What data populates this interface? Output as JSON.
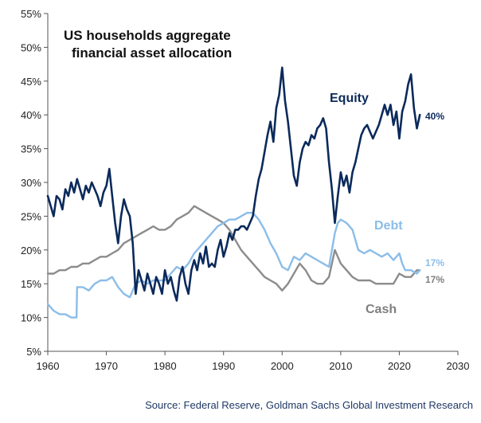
{
  "chart_data": {
    "type": "line",
    "title_lines": [
      "US households aggregate",
      "financial asset allocation"
    ],
    "xlim": [
      1960,
      2030
    ],
    "ylim": [
      5,
      55
    ],
    "x_ticks": [
      1960,
      1970,
      1980,
      1990,
      2000,
      2010,
      2020,
      2030
    ],
    "y_ticks": [
      5,
      10,
      15,
      20,
      25,
      30,
      35,
      40,
      45,
      50,
      55
    ],
    "y_tick_labels": [
      "5%",
      "10%",
      "15%",
      "20%",
      "25%",
      "30%",
      "35%",
      "40%",
      "45%",
      "50%",
      "55%"
    ],
    "grid": false,
    "series": [
      {
        "name": "Equity",
        "color": "#0b2a5b",
        "end_label": "40%",
        "points": [
          [
            1960,
            28
          ],
          [
            1960.5,
            26.5
          ],
          [
            1961,
            25
          ],
          [
            1961.5,
            28
          ],
          [
            1962,
            27.5
          ],
          [
            1962.5,
            26
          ],
          [
            1963,
            29
          ],
          [
            1963.5,
            28
          ],
          [
            1964,
            30
          ],
          [
            1964.5,
            28.5
          ],
          [
            1965,
            30.5
          ],
          [
            1965.5,
            29
          ],
          [
            1966,
            27.5
          ],
          [
            1966.5,
            29.5
          ],
          [
            1967,
            28.5
          ],
          [
            1967.5,
            30
          ],
          [
            1968,
            29
          ],
          [
            1968.5,
            28
          ],
          [
            1969,
            26.5
          ],
          [
            1969.5,
            28.5
          ],
          [
            1970,
            29.5
          ],
          [
            1970.5,
            32
          ],
          [
            1971,
            28
          ],
          [
            1971.5,
            24
          ],
          [
            1972,
            21
          ],
          [
            1972.5,
            25
          ],
          [
            1973,
            27.5
          ],
          [
            1973.5,
            26
          ],
          [
            1974,
            25
          ],
          [
            1974.5,
            21
          ],
          [
            1975,
            13.5
          ],
          [
            1975.5,
            17
          ],
          [
            1976,
            15.5
          ],
          [
            1976.5,
            14
          ],
          [
            1977,
            16.5
          ],
          [
            1977.5,
            15
          ],
          [
            1978,
            13.5
          ],
          [
            1978.5,
            16
          ],
          [
            1979,
            15
          ],
          [
            1979.5,
            13.5
          ],
          [
            1980,
            17
          ],
          [
            1980.5,
            15
          ],
          [
            1981,
            16
          ],
          [
            1981.5,
            14
          ],
          [
            1982,
            12.5
          ],
          [
            1982.5,
            16
          ],
          [
            1983,
            17.5
          ],
          [
            1983.5,
            15
          ],
          [
            1984,
            13.5
          ],
          [
            1984.5,
            17
          ],
          [
            1985,
            18.5
          ],
          [
            1985.5,
            17
          ],
          [
            1986,
            19.5
          ],
          [
            1986.5,
            18
          ],
          [
            1987,
            20.5
          ],
          [
            1987.5,
            17.5
          ],
          [
            1988,
            18
          ],
          [
            1988.5,
            17.5
          ],
          [
            1989,
            20
          ],
          [
            1989.5,
            21.5
          ],
          [
            1990,
            19
          ],
          [
            1990.5,
            20.5
          ],
          [
            1991,
            22.5
          ],
          [
            1991.5,
            21.5
          ],
          [
            1992,
            23
          ],
          [
            1992.5,
            23
          ],
          [
            1993,
            23.5
          ],
          [
            1993.5,
            23.5
          ],
          [
            1994,
            23
          ],
          [
            1994.5,
            24
          ],
          [
            1995,
            25
          ],
          [
            1995.5,
            28
          ],
          [
            1996,
            30.5
          ],
          [
            1996.5,
            32
          ],
          [
            1997,
            34.5
          ],
          [
            1997.5,
            37
          ],
          [
            1998,
            39
          ],
          [
            1998.5,
            36
          ],
          [
            1999,
            41
          ],
          [
            1999.5,
            43
          ],
          [
            2000,
            47
          ],
          [
            2000.5,
            42
          ],
          [
            2001,
            39
          ],
          [
            2001.5,
            35
          ],
          [
            2002,
            31
          ],
          [
            2002.5,
            29.5
          ],
          [
            2003,
            33
          ],
          [
            2003.5,
            35
          ],
          [
            2004,
            36
          ],
          [
            2004.5,
            35.5
          ],
          [
            2005,
            37
          ],
          [
            2005.5,
            36.5
          ],
          [
            2006,
            38
          ],
          [
            2006.5,
            38.5
          ],
          [
            2007,
            39.5
          ],
          [
            2007.5,
            38
          ],
          [
            2008,
            33
          ],
          [
            2008.5,
            29
          ],
          [
            2009,
            24
          ],
          [
            2009.5,
            28
          ],
          [
            2010,
            31.5
          ],
          [
            2010.5,
            29.5
          ],
          [
            2011,
            31
          ],
          [
            2011.5,
            28.5
          ],
          [
            2012,
            31.5
          ],
          [
            2012.5,
            33
          ],
          [
            2013,
            35
          ],
          [
            2013.5,
            37
          ],
          [
            2014,
            38
          ],
          [
            2014.5,
            38.5
          ],
          [
            2015,
            37.5
          ],
          [
            2015.5,
            36.5
          ],
          [
            2016,
            37.5
          ],
          [
            2016.5,
            38.5
          ],
          [
            2017,
            40
          ],
          [
            2017.5,
            41.5
          ],
          [
            2018,
            40
          ],
          [
            2018.5,
            41.5
          ],
          [
            2019,
            38.5
          ],
          [
            2019.5,
            40.5
          ],
          [
            2020,
            36.5
          ],
          [
            2020.5,
            40.5
          ],
          [
            2021,
            42
          ],
          [
            2021.5,
            44.5
          ],
          [
            2022,
            46
          ],
          [
            2022.5,
            41
          ],
          [
            2023,
            38
          ],
          [
            2023.5,
            40
          ]
        ]
      },
      {
        "name": "Debt",
        "color": "#8bbde8",
        "end_label": "17%",
        "points": [
          [
            1960,
            12
          ],
          [
            1961,
            11
          ],
          [
            1962,
            10.5
          ],
          [
            1963,
            10.5
          ],
          [
            1964,
            10
          ],
          [
            1964.9,
            10
          ],
          [
            1965,
            14.5
          ],
          [
            1966,
            14.5
          ],
          [
            1967,
            14
          ],
          [
            1968,
            15
          ],
          [
            1969,
            15.5
          ],
          [
            1970,
            15.5
          ],
          [
            1971,
            16
          ],
          [
            1972,
            14.5
          ],
          [
            1973,
            13.5
          ],
          [
            1974,
            13
          ],
          [
            1975,
            15
          ],
          [
            1976,
            15.5
          ],
          [
            1977,
            15
          ],
          [
            1978,
            15.5
          ],
          [
            1979,
            15.5
          ],
          [
            1980,
            15.5
          ],
          [
            1981,
            16.5
          ],
          [
            1982,
            17.5
          ],
          [
            1983,
            17
          ],
          [
            1984,
            18
          ],
          [
            1985,
            19.5
          ],
          [
            1986,
            20.5
          ],
          [
            1987,
            21.5
          ],
          [
            1988,
            22.5
          ],
          [
            1989,
            23.5
          ],
          [
            1990,
            24
          ],
          [
            1991,
            24.5
          ],
          [
            1992,
            24.5
          ],
          [
            1993,
            25
          ],
          [
            1994,
            25.5
          ],
          [
            1995,
            25.5
          ],
          [
            1996,
            24.5
          ],
          [
            1997,
            23
          ],
          [
            1998,
            21
          ],
          [
            1999,
            19.5
          ],
          [
            2000,
            17.5
          ],
          [
            2001,
            17
          ],
          [
            2002,
            19
          ],
          [
            2003,
            18.5
          ],
          [
            2004,
            19.5
          ],
          [
            2005,
            19
          ],
          [
            2006,
            18.5
          ],
          [
            2007,
            18
          ],
          [
            2008,
            17.5
          ],
          [
            2009,
            22.5
          ],
          [
            2009.5,
            24
          ],
          [
            2010,
            24.5
          ],
          [
            2011,
            24
          ],
          [
            2012,
            23
          ],
          [
            2013,
            20
          ],
          [
            2014,
            19.5
          ],
          [
            2015,
            20
          ],
          [
            2016,
            19.5
          ],
          [
            2017,
            19
          ],
          [
            2018,
            19.5
          ],
          [
            2019,
            18.5
          ],
          [
            2020,
            19.5
          ],
          [
            2020.5,
            18
          ],
          [
            2021,
            17
          ],
          [
            2022,
            17
          ],
          [
            2023,
            16.5
          ],
          [
            2023.5,
            17
          ]
        ]
      },
      {
        "name": "Cash",
        "color": "#8c8c8c",
        "end_label": "17%",
        "points": [
          [
            1960,
            16.5
          ],
          [
            1961,
            16.5
          ],
          [
            1962,
            17
          ],
          [
            1963,
            17
          ],
          [
            1964,
            17.5
          ],
          [
            1965,
            17.5
          ],
          [
            1966,
            18
          ],
          [
            1967,
            18
          ],
          [
            1968,
            18.5
          ],
          [
            1969,
            19
          ],
          [
            1970,
            19
          ],
          [
            1971,
            19.5
          ],
          [
            1972,
            20
          ],
          [
            1973,
            21
          ],
          [
            1974,
            21.5
          ],
          [
            1975,
            22
          ],
          [
            1976,
            22.5
          ],
          [
            1977,
            23
          ],
          [
            1978,
            23.5
          ],
          [
            1979,
            23
          ],
          [
            1980,
            23
          ],
          [
            1981,
            23.5
          ],
          [
            1982,
            24.5
          ],
          [
            1983,
            25
          ],
          [
            1984,
            25.5
          ],
          [
            1985,
            26.5
          ],
          [
            1986,
            26
          ],
          [
            1987,
            25.5
          ],
          [
            1988,
            25
          ],
          [
            1989,
            24.5
          ],
          [
            1990,
            24
          ],
          [
            1991,
            23
          ],
          [
            1992,
            21.5
          ],
          [
            1993,
            20
          ],
          [
            1994,
            19
          ],
          [
            1995,
            18
          ],
          [
            1996,
            17
          ],
          [
            1997,
            16
          ],
          [
            1998,
            15.5
          ],
          [
            1999,
            15
          ],
          [
            2000,
            14
          ],
          [
            2001,
            15
          ],
          [
            2002,
            16.5
          ],
          [
            2003,
            18
          ],
          [
            2004,
            17
          ],
          [
            2005,
            15.5
          ],
          [
            2006,
            15
          ],
          [
            2007,
            15
          ],
          [
            2008,
            16
          ],
          [
            2009,
            20
          ],
          [
            2010,
            18
          ],
          [
            2011,
            17
          ],
          [
            2012,
            16
          ],
          [
            2013,
            15.5
          ],
          [
            2014,
            15.5
          ],
          [
            2015,
            15.5
          ],
          [
            2016,
            15
          ],
          [
            2017,
            15
          ],
          [
            2018,
            15
          ],
          [
            2019,
            15
          ],
          [
            2020,
            16.5
          ],
          [
            2021,
            16
          ],
          [
            2022,
            16
          ],
          [
            2023,
            17
          ],
          [
            2023.5,
            17
          ]
        ]
      }
    ],
    "series_label_positions": "Equity above the line near 2010s, Debt right of light blue line, Cash below grey line",
    "source": "Source: Federal Reserve, Goldman Sachs Global Investment Research"
  }
}
